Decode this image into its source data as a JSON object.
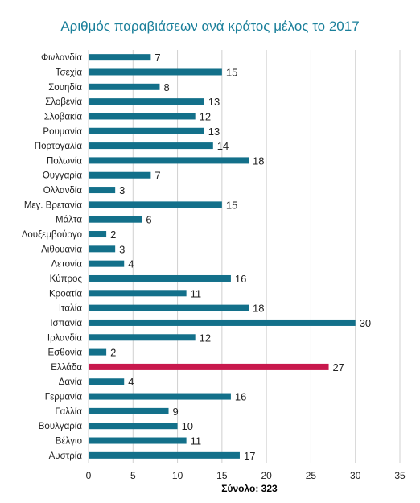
{
  "chart_data": {
    "type": "bar",
    "orientation": "horizontal",
    "title": "Αριθμός παραβιάσεων ανά κράτος μέλος το 2017",
    "xlabel": "Σύνολο: 323",
    "xlim": [
      0,
      35
    ],
    "xticks": [
      0,
      5,
      10,
      15,
      20,
      25,
      30,
      35
    ],
    "grid": "vertical",
    "legend": "none",
    "categories": [
      "Φινλανδία",
      "Τσεχία",
      "Σουηδία",
      "Σλοβενία",
      "Σλοβακία",
      "Ρουμανία",
      "Πορτογαλία",
      "Πολωνία",
      "Ουγγαρία",
      "Ολλανδία",
      "Μεγ. Βρετανία",
      "Μάλτα",
      "Λουξεμβούργο",
      "Λιθουανία",
      "Λετονία",
      "Κύπρος",
      "Κροατία",
      "Ιταλία",
      "Ισπανία",
      "Ιρλανδία",
      "Εσθονία",
      "Ελλάδα",
      "Δανία",
      "Γερμανία",
      "Γαλλία",
      "Βουλγαρία",
      "Βέλγιο",
      "Αυστρία"
    ],
    "values": [
      7,
      15,
      8,
      13,
      12,
      13,
      14,
      18,
      7,
      3,
      15,
      6,
      2,
      3,
      4,
      16,
      11,
      18,
      30,
      12,
      2,
      27,
      4,
      16,
      9,
      10,
      11,
      17
    ],
    "highlight_category": "Ελλάδα",
    "colors": {
      "bar": "#13708a",
      "highlight": "#c8184d",
      "title": "#1a7f9a",
      "grid": "#d0d0d0",
      "text": "#222222"
    }
  }
}
